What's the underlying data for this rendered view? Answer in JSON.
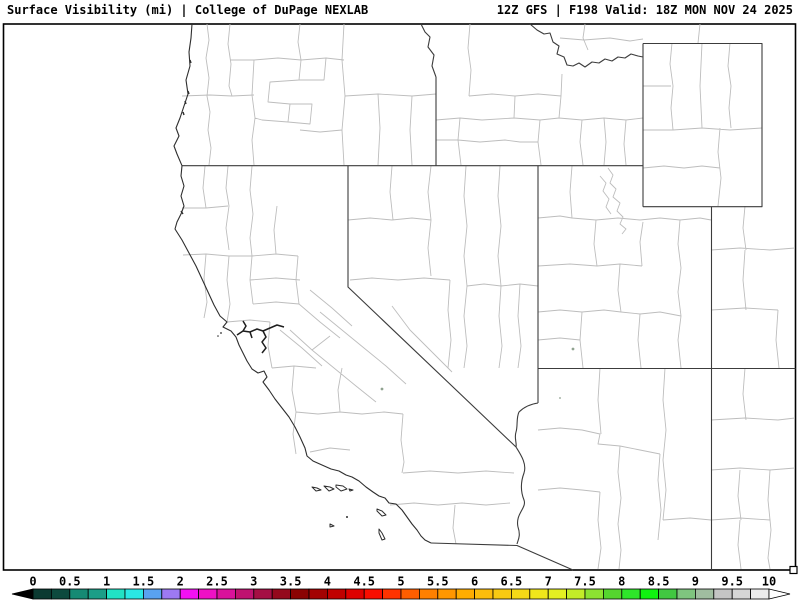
{
  "header": {
    "left_title": "Surface Visibility (mi) | College of DuPage NEXLAB",
    "right_title": "12Z GFS | F198 Valid: 18Z MON NOV 24 2025"
  },
  "colorbar": {
    "min": 0,
    "max": 10,
    "units_per_cell": 0.25,
    "tick_labels": [
      "0",
      "0.5",
      "1",
      "1.5",
      "2",
      "2.5",
      "3",
      "3.5",
      "4",
      "4.5",
      "5",
      "5.5",
      "6",
      "6.5",
      "7",
      "7.5",
      "8",
      "8.5",
      "9",
      "9.5",
      "10"
    ],
    "cell_colors": [
      "#0b3a31",
      "#0d4a3e",
      "#168a74",
      "#1b9e87",
      "#21e2c4",
      "#2ae8e4",
      "#59a2f0",
      "#9d79f2",
      "#f311f3",
      "#ee11c4",
      "#d9129b",
      "#bf1270",
      "#a50f44",
      "#94091c",
      "#8b0303",
      "#a30202",
      "#c00100",
      "#de0100",
      "#f90d00",
      "#ff3300",
      "#ff5e00",
      "#ff8000",
      "#ff9700",
      "#ffad00",
      "#fcbd0c",
      "#f8ca12",
      "#f4d816",
      "#f0e61b",
      "#e4ef22",
      "#c3ec28",
      "#8ce231",
      "#55d52e",
      "#2ee52a",
      "#10f210",
      "#41c841",
      "#7fc47f",
      "#a0bda0",
      "#c4c4c4",
      "#d6d6d6",
      "#ebebeb"
    ],
    "left_arrow_color": "#000000",
    "right_arrow_color": "#ffffff",
    "outline_color": "#000000",
    "label_color": "#000000"
  },
  "map": {
    "frame_color": "#000000",
    "state_border_color": "#3c3c3c",
    "coastline_color": "#2e2e2e",
    "county_line_color": "#bdbdbd",
    "station_dot_color": "#90a390"
  }
}
